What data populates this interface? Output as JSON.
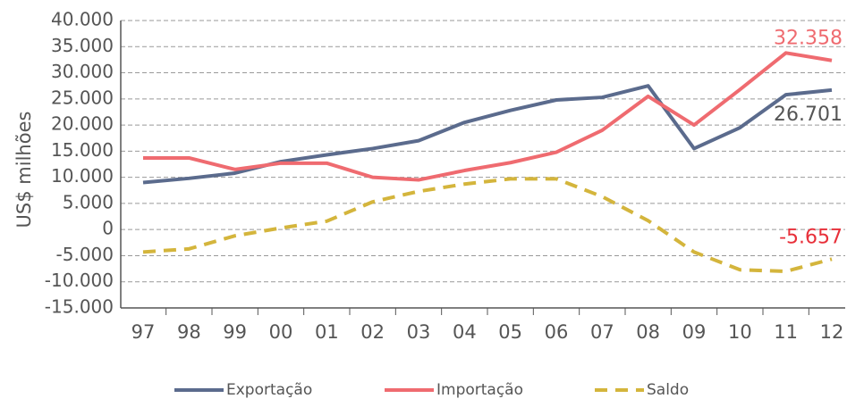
{
  "chart_data": {
    "type": "line",
    "y_label": "US$  milhões",
    "categories": [
      "97",
      "98",
      "99",
      "00",
      "01",
      "02",
      "03",
      "04",
      "05",
      "06",
      "07",
      "08",
      "09",
      "10",
      "11",
      "12"
    ],
    "ylim": [
      -15000,
      40000
    ],
    "yticks": [
      {
        "value": 40000,
        "label": "40.000"
      },
      {
        "value": 35000,
        "label": "35.000"
      },
      {
        "value": 30000,
        "label": "30.000"
      },
      {
        "value": 25000,
        "label": "25.000"
      },
      {
        "value": 20000,
        "label": "20.000"
      },
      {
        "value": 15000,
        "label": "15.000"
      },
      {
        "value": 10000,
        "label": "10.000"
      },
      {
        "value": 5000,
        "label": "5.000"
      },
      0,
      {
        "value": -5000,
        "label": "-5.000"
      },
      {
        "value": -10000,
        "label": "-10.000"
      },
      {
        "value": -15000,
        "label": "-15.000"
      }
    ],
    "grid": true,
    "series": [
      {
        "name": "Exportação",
        "color": "#5b6b8d",
        "dashed": false,
        "label_color": "#555555",
        "values": [
          9000,
          9800,
          10800,
          13000,
          14300,
          15500,
          17000,
          20500,
          22800,
          24800,
          25300,
          27500,
          15500,
          19500,
          25800,
          26701
        ],
        "value_labels": [
          null,
          null,
          null,
          null,
          null,
          null,
          null,
          null,
          null,
          null,
          null,
          null,
          null,
          null,
          null,
          "26.701"
        ]
      },
      {
        "name": "Importação",
        "color": "#ef6b70",
        "dashed": false,
        "label_color": "#ef6b70",
        "values": [
          13700,
          13700,
          11500,
          12700,
          12700,
          10000,
          9500,
          11300,
          12800,
          14800,
          19000,
          25500,
          20000,
          26800,
          33800,
          32358
        ],
        "value_labels": [
          null,
          null,
          null,
          null,
          null,
          null,
          null,
          null,
          null,
          null,
          null,
          null,
          null,
          null,
          null,
          "32.358"
        ]
      },
      {
        "name": "Saldo",
        "color": "#d4b53c",
        "dashed": true,
        "label_color": "#e8303a",
        "values": [
          -4300,
          -3700,
          -1200,
          300,
          1600,
          5300,
          7300,
          8700,
          9700,
          9700,
          6300,
          1700,
          -4300,
          -7700,
          -8000,
          -5657
        ],
        "value_labels": [
          null,
          null,
          null,
          null,
          null,
          null,
          null,
          null,
          null,
          null,
          null,
          null,
          null,
          null,
          null,
          "-5.657"
        ]
      }
    ]
  }
}
